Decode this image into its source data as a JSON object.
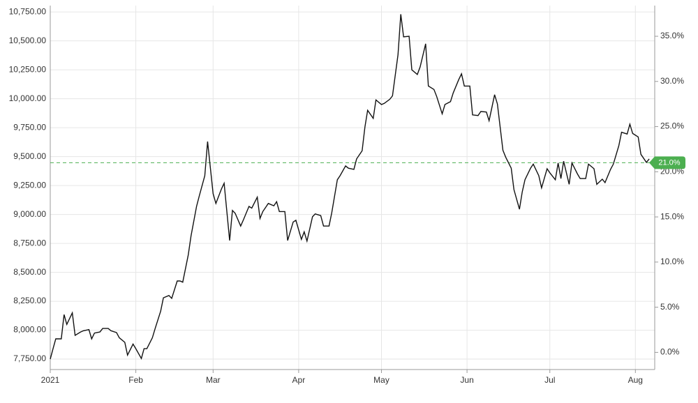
{
  "chart_data": {
    "type": "line",
    "color": "#111111",
    "x": [
      0,
      1,
      2,
      4,
      5,
      6,
      8,
      9,
      11,
      12,
      14,
      15,
      16,
      18,
      19,
      21,
      22,
      24,
      25,
      27,
      28,
      30,
      31,
      33,
      34,
      35,
      37,
      38,
      40,
      41,
      43,
      44,
      46,
      47,
      48,
      50,
      51,
      53,
      54,
      56,
      57,
      59,
      60,
      62,
      63,
      65,
      66,
      67,
      69,
      70,
      72,
      73,
      75,
      76,
      77,
      79,
      81,
      82,
      83,
      85,
      86,
      88,
      89,
      91,
      92,
      93,
      95,
      96,
      98,
      99,
      101,
      102,
      104,
      105,
      107,
      108,
      110,
      111,
      113,
      114,
      115,
      117,
      118,
      120,
      121,
      123,
      124,
      126,
      127,
      128,
      130,
      131,
      133,
      134,
      136,
      137,
      139,
      140,
      142,
      143,
      145,
      146,
      148,
      149,
      150,
      152,
      153,
      155,
      156,
      158,
      159,
      161,
      162,
      164,
      165,
      167,
      168,
      170,
      171,
      172,
      174,
      175,
      177,
      178,
      180,
      181,
      183,
      184,
      185,
      186,
      188,
      189,
      191,
      192,
      194,
      195,
      197,
      198,
      200,
      201,
      203,
      204,
      206,
      207,
      209,
      210,
      211,
      213,
      214,
      216,
      217
    ],
    "values": [
      7750,
      7840,
      7925,
      7925,
      8135,
      8050,
      8150,
      7955,
      7985,
      7995,
      8005,
      7925,
      7975,
      7985,
      8015,
      8015,
      7995,
      7980,
      7935,
      7895,
      7785,
      7880,
      7840,
      7755,
      7840,
      7840,
      7935,
      8015,
      8165,
      8280,
      8300,
      8275,
      8425,
      8425,
      8415,
      8650,
      8815,
      9070,
      9160,
      9335,
      9630,
      9180,
      9095,
      9220,
      9270,
      8775,
      9035,
      9010,
      8900,
      8955,
      9070,
      9055,
      9150,
      8965,
      9025,
      9095,
      9075,
      9110,
      9025,
      9025,
      8775,
      8935,
      8950,
      8785,
      8850,
      8770,
      8980,
      9005,
      8990,
      8900,
      8900,
      9015,
      9300,
      9335,
      9420,
      9400,
      9390,
      9480,
      9550,
      9755,
      9900,
      9830,
      9990,
      9950,
      9960,
      9995,
      10025,
      10380,
      10730,
      10535,
      10540,
      10250,
      10210,
      10275,
      10475,
      10110,
      10080,
      10020,
      9870,
      9950,
      9975,
      10050,
      10165,
      10215,
      10110,
      10110,
      9860,
      9855,
      9890,
      9885,
      9810,
      10035,
      9955,
      9555,
      9495,
      9400,
      9215,
      9045,
      9195,
      9300,
      9400,
      9435,
      9335,
      9230,
      9395,
      9360,
      9300,
      9445,
      9310,
      9460,
      9260,
      9445,
      9350,
      9310,
      9310,
      9435,
      9395,
      9260,
      9305,
      9275,
      9390,
      9435,
      9595,
      9710,
      9695,
      9780,
      9700,
      9670,
      9520,
      9450,
      9480
    ],
    "xlim": [
      0,
      219
    ],
    "xticks": [
      {
        "value": 0,
        "label": "2021"
      },
      {
        "value": 31,
        "label": "Feb"
      },
      {
        "value": 59,
        "label": "Mar"
      },
      {
        "value": 90,
        "label": "Apr"
      },
      {
        "value": 120,
        "label": "May"
      },
      {
        "value": 151,
        "label": "Jun"
      },
      {
        "value": 181,
        "label": "Jul"
      },
      {
        "value": 212,
        "label": "Aug"
      }
    ],
    "ylim": [
      7660,
      10805
    ],
    "yticks": [
      {
        "value": 7750,
        "label": "7,750.00"
      },
      {
        "value": 8000,
        "label": "8,000.00"
      },
      {
        "value": 8250,
        "label": "8,250.00"
      },
      {
        "value": 8500,
        "label": "8,500.00"
      },
      {
        "value": 8750,
        "label": "8,750.00"
      },
      {
        "value": 9000,
        "label": "9,000.00"
      },
      {
        "value": 9250,
        "label": "9,250.00"
      },
      {
        "value": 9500,
        "label": "9,500.00"
      },
      {
        "value": 9750,
        "label": "9,750.00"
      },
      {
        "value": 10000,
        "label": "10,000.00"
      },
      {
        "value": 10250,
        "label": "10,250.00"
      },
      {
        "value": 10500,
        "label": "10,500.00"
      },
      {
        "value": 10750,
        "label": "10,750.00"
      }
    ],
    "y2lim": [
      -1.9,
      38.4
    ],
    "y2ticks": [
      {
        "value": 0,
        "label": "0.0%"
      },
      {
        "value": 5,
        "label": "5.0%"
      },
      {
        "value": 10,
        "label": "10.0%"
      },
      {
        "value": 15,
        "label": "15.0%"
      },
      {
        "value": 20,
        "label": "20.0%"
      },
      {
        "value": 25,
        "label": "25.0%"
      },
      {
        "value": 30,
        "label": "30.0%"
      },
      {
        "value": 35,
        "label": "35.0%"
      }
    ],
    "reference_line": {
      "value": 21,
      "label": "21.0%",
      "color": "#4caf50"
    },
    "grid": true
  }
}
